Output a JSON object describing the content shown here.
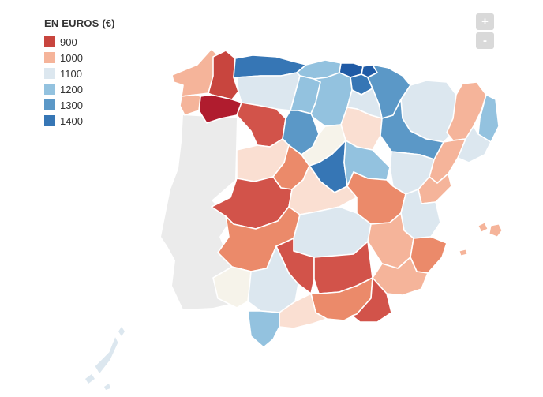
{
  "legend": {
    "title": "EN EUROS (€)",
    "items": [
      {
        "label": "900",
        "color": "#c8453e"
      },
      {
        "label": "1000",
        "color": "#f5b49a"
      },
      {
        "label": "1100",
        "color": "#dce7ef"
      },
      {
        "label": "1200",
        "color": "#93c2df"
      },
      {
        "label": "1300",
        "color": "#5b98c7"
      },
      {
        "label": "1400",
        "color": "#3676b5"
      }
    ]
  },
  "zoom": {
    "in_label": "+",
    "out_label": "-"
  },
  "colors": {
    "no_data": "#ebebeb",
    "border": "#ffffff",
    "darkest_red": "#b01c2e",
    "dark_red": "#d2534a",
    "orange": "#eb8a6a",
    "light_peach": "#fadfd2",
    "cream": "#f6f3ea",
    "darkest_blue": "#1f5aa5"
  },
  "regions": [
    {
      "name": "A Coruña",
      "fill": "#f5b49a"
    },
    {
      "name": "Lugo",
      "fill": "#c8453e"
    },
    {
      "name": "Ourense",
      "fill": "#b01c2e"
    },
    {
      "name": "Pontevedra",
      "fill": "#f5b49a"
    },
    {
      "name": "Asturias",
      "fill": "#3676b5"
    },
    {
      "name": "Cantabria",
      "fill": "#93c2df"
    },
    {
      "name": "Bizkaia",
      "fill": "#1f5aa5"
    },
    {
      "name": "Gipuzkoa",
      "fill": "#1f5aa5"
    },
    {
      "name": "Araba",
      "fill": "#3676b5"
    },
    {
      "name": "Navarra",
      "fill": "#5b98c7"
    },
    {
      "name": "León",
      "fill": "#dce7ef"
    },
    {
      "name": "Palencia",
      "fill": "#93c2df"
    },
    {
      "name": "Burgos",
      "fill": "#93c2df"
    },
    {
      "name": "La Rioja",
      "fill": "#dce7ef"
    },
    {
      "name": "Huesca",
      "fill": "#dce7ef"
    },
    {
      "name": "Lleida",
      "fill": "#f5b49a"
    },
    {
      "name": "Girona",
      "fill": "#93c2df"
    },
    {
      "name": "Barcelona",
      "fill": "#dce7ef"
    },
    {
      "name": "Tarragona",
      "fill": "#f5b49a"
    },
    {
      "name": "Zamora",
      "fill": "#d2534a"
    },
    {
      "name": "Valladolid",
      "fill": "#5b98c7"
    },
    {
      "name": "Soria",
      "fill": "#fadfd2"
    },
    {
      "name": "Zaragoza",
      "fill": "#5b98c7"
    },
    {
      "name": "Salamanca",
      "fill": "#fadfd2"
    },
    {
      "name": "Ávila",
      "fill": "#eb8a6a"
    },
    {
      "name": "Segovia",
      "fill": "#f6f3ea"
    },
    {
      "name": "Madrid",
      "fill": "#3676b5"
    },
    {
      "name": "Guadalajara",
      "fill": "#93c2df"
    },
    {
      "name": "Teruel",
      "fill": "#dce7ef"
    },
    {
      "name": "Castellón",
      "fill": "#f5b49a"
    },
    {
      "name": "Cáceres",
      "fill": "#d2534a"
    },
    {
      "name": "Toledo",
      "fill": "#fadfd2"
    },
    {
      "name": "Cuenca",
      "fill": "#eb8a6a"
    },
    {
      "name": "Valencia",
      "fill": "#dce7ef"
    },
    {
      "name": "Badajoz",
      "fill": "#eb8a6a"
    },
    {
      "name": "Ciudad Real",
      "fill": "#dce7ef"
    },
    {
      "name": "Albacete",
      "fill": "#f5b49a"
    },
    {
      "name": "Alicante",
      "fill": "#eb8a6a"
    },
    {
      "name": "Murcia",
      "fill": "#f5b49a"
    },
    {
      "name": "Huelva",
      "fill": "#f6f3ea"
    },
    {
      "name": "Sevilla",
      "fill": "#dce7ef"
    },
    {
      "name": "Córdoba",
      "fill": "#d2534a"
    },
    {
      "name": "Jaén",
      "fill": "#d2534a"
    },
    {
      "name": "Granada",
      "fill": "#eb8a6a"
    },
    {
      "name": "Almería",
      "fill": "#d2534a"
    },
    {
      "name": "Cádiz",
      "fill": "#93c2df"
    },
    {
      "name": "Málaga",
      "fill": "#fadfd2"
    },
    {
      "name": "Mallorca",
      "fill": "#f5b49a"
    },
    {
      "name": "Menorca",
      "fill": "#f5b49a"
    },
    {
      "name": "Ibiza",
      "fill": "#f5b49a"
    },
    {
      "name": "Canarias",
      "fill": "#dce7ef"
    }
  ]
}
